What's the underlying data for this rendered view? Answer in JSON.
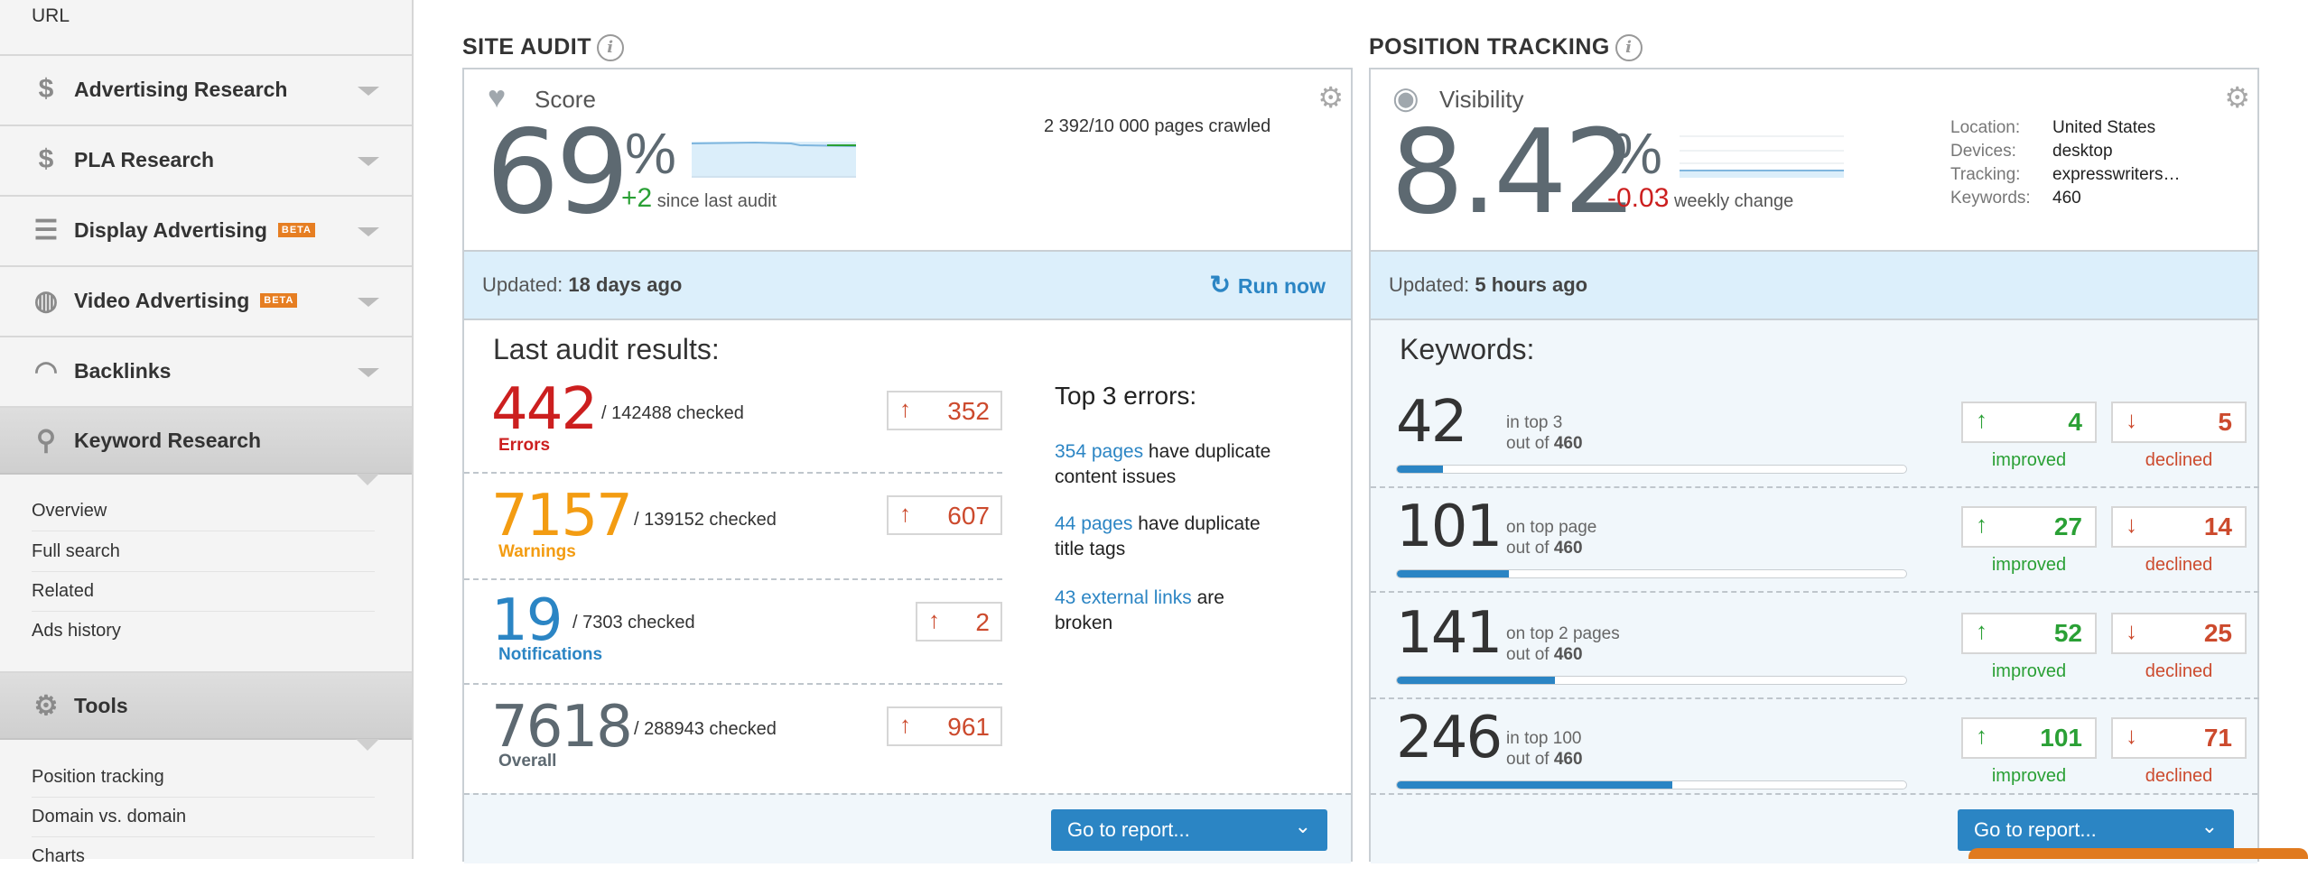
{
  "sidebar": {
    "url_label": "URL",
    "items": [
      {
        "label": "Advertising Research",
        "icon": "$"
      },
      {
        "label": "PLA Research",
        "icon": "$"
      },
      {
        "label": "Display Advertising",
        "icon": "☰",
        "badge": "BETA"
      },
      {
        "label": "Video Advertising",
        "icon": "◍",
        "badge": "BETA"
      },
      {
        "label": "Backlinks",
        "icon": "◠"
      },
      {
        "label": "Keyword Research",
        "icon": "⚲"
      }
    ],
    "keyword_sub": [
      "Overview",
      "Full search",
      "Related",
      "Ads history"
    ],
    "tools_label": "Tools",
    "tools_icon": "⚙",
    "tools_sub": [
      "Position tracking",
      "Domain vs. domain",
      "Charts"
    ]
  },
  "site_audit": {
    "title": "SITE AUDIT",
    "score_label": "Score",
    "score_value": "69",
    "percent_sign": "%",
    "since_delta": "+2",
    "since_text": "since last audit",
    "pages_crawled": "2 392/10 000 pages crawled",
    "updated_prefix": "Updated:",
    "updated_value": "18 days ago",
    "run_now": "Run now",
    "results_title": "Last audit results:",
    "rows": [
      {
        "value": "442",
        "caption": "Errors",
        "checked": "/ 142488 checked",
        "delta": "352",
        "color": "#cc1f1f"
      },
      {
        "value": "7157",
        "caption": "Warnings",
        "checked": "/ 139152 checked",
        "delta": "607",
        "color": "#f39c12"
      },
      {
        "value": "19",
        "caption": "Notifications",
        "checked": "/ 7303 checked",
        "delta": "2",
        "color": "#2b85c4"
      },
      {
        "value": "7618",
        "caption": "Overall",
        "checked": "/ 288943 checked",
        "delta": "961",
        "color": "#5d6971"
      }
    ],
    "top3_title": "Top 3 errors:",
    "top3": [
      {
        "link": "354 pages",
        "rest": " have duplicate content issues"
      },
      {
        "link": "44 pages",
        "rest": " have duplicate title tags"
      },
      {
        "link": "43 external links",
        "rest": " are broken"
      }
    ],
    "goto": "Go to report..."
  },
  "position_tracking": {
    "title": "POSITION TRACKING",
    "visibility_label": "Visibility",
    "visibility_value": "8.42",
    "percent_sign": "%",
    "weekly_delta": "-0.03",
    "weekly_text": "weekly change",
    "meta": [
      {
        "key": "Location:",
        "value": "United States"
      },
      {
        "key": "Devices:",
        "value": "desktop"
      },
      {
        "key": "Tracking:",
        "value": "expresswriters…"
      },
      {
        "key": "Keywords:",
        "value": "460"
      }
    ],
    "updated_prefix": "Updated:",
    "updated_value": "5 hours ago",
    "keywords_title": "Keywords:",
    "rows": [
      {
        "value": "42",
        "line1": "in top 3",
        "out_of": "out of",
        "total": "460",
        "fill": 0.09,
        "improved": "4",
        "declined": "5"
      },
      {
        "value": "101",
        "line1": "on top page",
        "out_of": "out of",
        "total": "460",
        "fill": 0.22,
        "improved": "27",
        "declined": "14"
      },
      {
        "value": "141",
        "line1": "on top 2 pages",
        "out_of": "out of",
        "total": "460",
        "fill": 0.31,
        "improved": "52",
        "declined": "25"
      },
      {
        "value": "246",
        "line1": "in top 100",
        "out_of": "out of",
        "total": "460",
        "fill": 0.54,
        "improved": "101",
        "declined": "71"
      }
    ],
    "improved_label": "improved",
    "declined_label": "declined",
    "goto": "Go to report..."
  },
  "colors": {
    "accent": "#2b85c4",
    "green": "#2aa035",
    "red": "#cc1f1f",
    "update_bar": "#dceffb"
  }
}
